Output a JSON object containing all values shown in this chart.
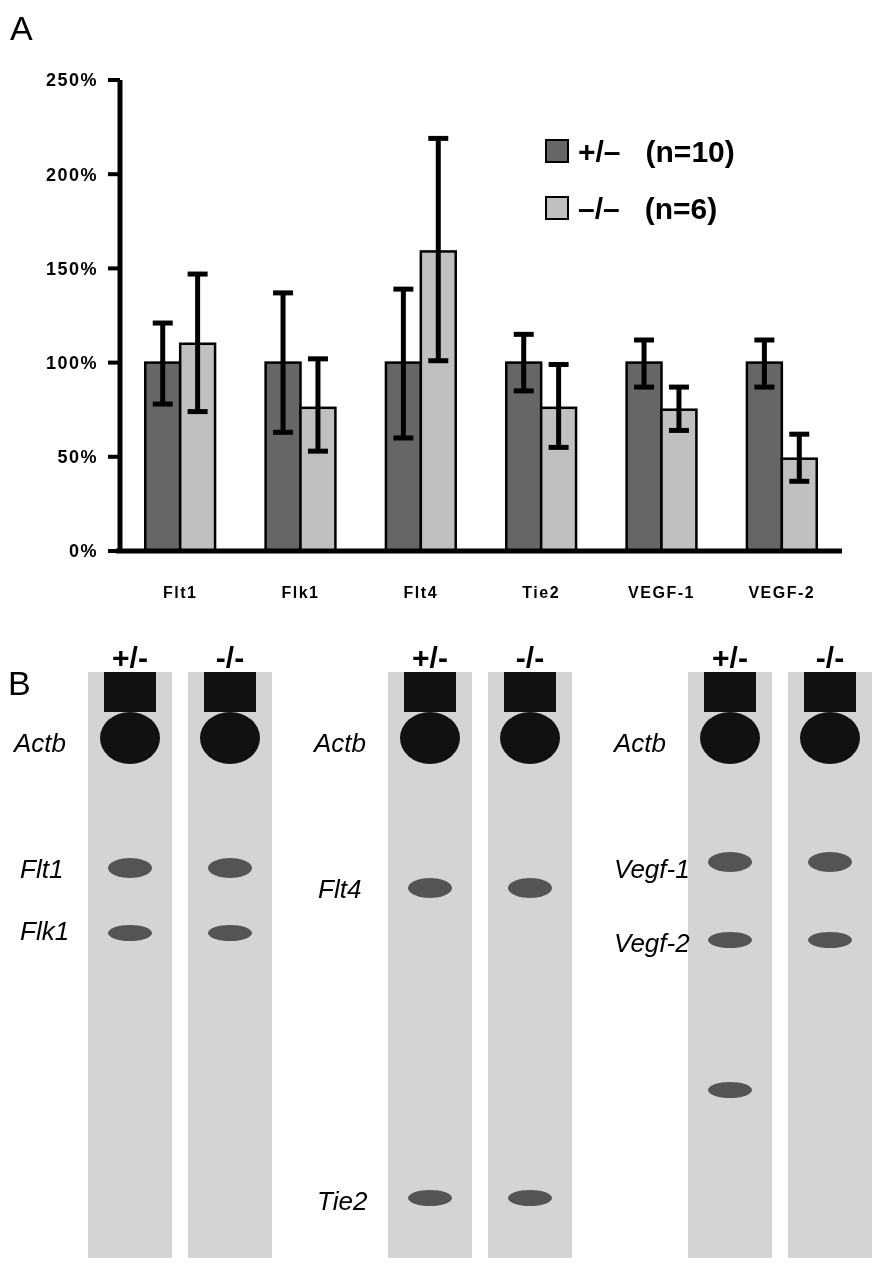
{
  "chart_data": {
    "type": "bar",
    "categories": [
      "Flt1",
      "Flk1",
      "Flt4",
      "Tie2",
      "VEGF-1",
      "VEGF-2"
    ],
    "series": [
      {
        "name": "+/–   (n=10)",
        "color": "#666666",
        "values": [
          100,
          100,
          100,
          100,
          100,
          100
        ],
        "errors": [
          [
            78,
            121
          ],
          [
            63,
            137
          ],
          [
            60,
            139
          ],
          [
            85,
            115
          ],
          [
            87,
            112
          ],
          [
            87,
            112
          ]
        ]
      },
      {
        "name": "–/–   (n=6)",
        "color": "#c0c0c0",
        "values": [
          110,
          76,
          159,
          76,
          75,
          49
        ],
        "errors": [
          [
            74,
            147
          ],
          [
            53,
            102
          ],
          [
            101,
            219
          ],
          [
            55,
            99
          ],
          [
            64,
            87
          ],
          [
            37,
            62
          ]
        ]
      }
    ],
    "ylim": [
      0,
      250
    ],
    "yticks": [
      {
        "value": 0,
        "label": "0%"
      },
      {
        "value": 50,
        "label": "50%"
      },
      {
        "value": 100,
        "label": "100%"
      },
      {
        "value": 150,
        "label": "150%"
      },
      {
        "value": 200,
        "label": "200%"
      },
      {
        "value": 250,
        "label": "250%"
      }
    ],
    "grid": false,
    "legend": "top right",
    "annotations": [
      "A",
      "B",
      "+/-",
      "-/-",
      "+/-",
      "-/-",
      "+/-",
      "-/-",
      "Actb",
      "Flt1",
      "Flk1",
      "Actb",
      "Flt4",
      "Tie2",
      "Actb",
      "Vegf-1",
      "Vegf-2"
    ]
  }
}
